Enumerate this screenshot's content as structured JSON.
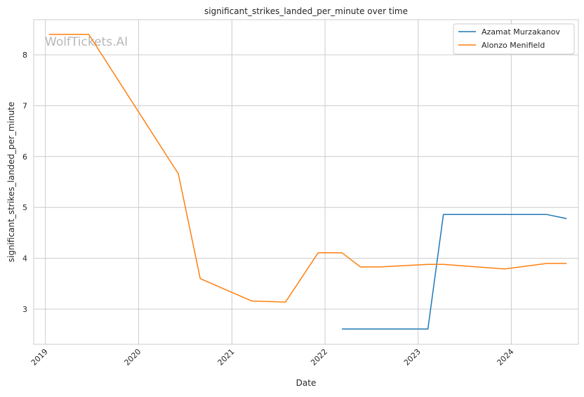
{
  "chart_data": {
    "type": "line",
    "title": "significant_strikes_landed_per_minute over time",
    "xlabel": "Date",
    "ylabel": "significant_strikes_landed_per_minute",
    "watermark": "WolfTickets.AI",
    "x_ticks": [
      "2019",
      "2020",
      "2021",
      "2022",
      "2023",
      "2024"
    ],
    "y_ticks": [
      "3",
      "4",
      "5",
      "6",
      "7",
      "8"
    ],
    "xlim": [
      "2018-11-16",
      "2024-09-20"
    ],
    "ylim": [
      2.31,
      8.69
    ],
    "grid": true,
    "legend_position": "top-right",
    "series": [
      {
        "name": "Azamat Murzakanov",
        "color": "#1f77b4",
        "points": [
          [
            "2022-03-08",
            2.61
          ],
          [
            "2023-02-08",
            2.61
          ],
          [
            "2023-04-10",
            4.86
          ],
          [
            "2024-05-20",
            4.86
          ],
          [
            "2024-08-05",
            4.78
          ]
        ]
      },
      {
        "name": "Alonzo Menifield",
        "color": "#ff7f0e",
        "points": [
          [
            "2019-01-15",
            8.4
          ],
          [
            "2019-06-20",
            8.4
          ],
          [
            "2020-06-05",
            5.66
          ],
          [
            "2020-08-30",
            3.6
          ],
          [
            "2021-03-20",
            3.16
          ],
          [
            "2021-07-30",
            3.14
          ],
          [
            "2021-12-05",
            4.11
          ],
          [
            "2022-03-08",
            4.11
          ],
          [
            "2022-05-20",
            3.83
          ],
          [
            "2022-08-05",
            3.83
          ],
          [
            "2023-02-08",
            3.88
          ],
          [
            "2023-04-10",
            3.88
          ],
          [
            "2023-12-05",
            3.79
          ],
          [
            "2024-05-20",
            3.9
          ],
          [
            "2024-08-05",
            3.9
          ]
        ]
      }
    ]
  }
}
